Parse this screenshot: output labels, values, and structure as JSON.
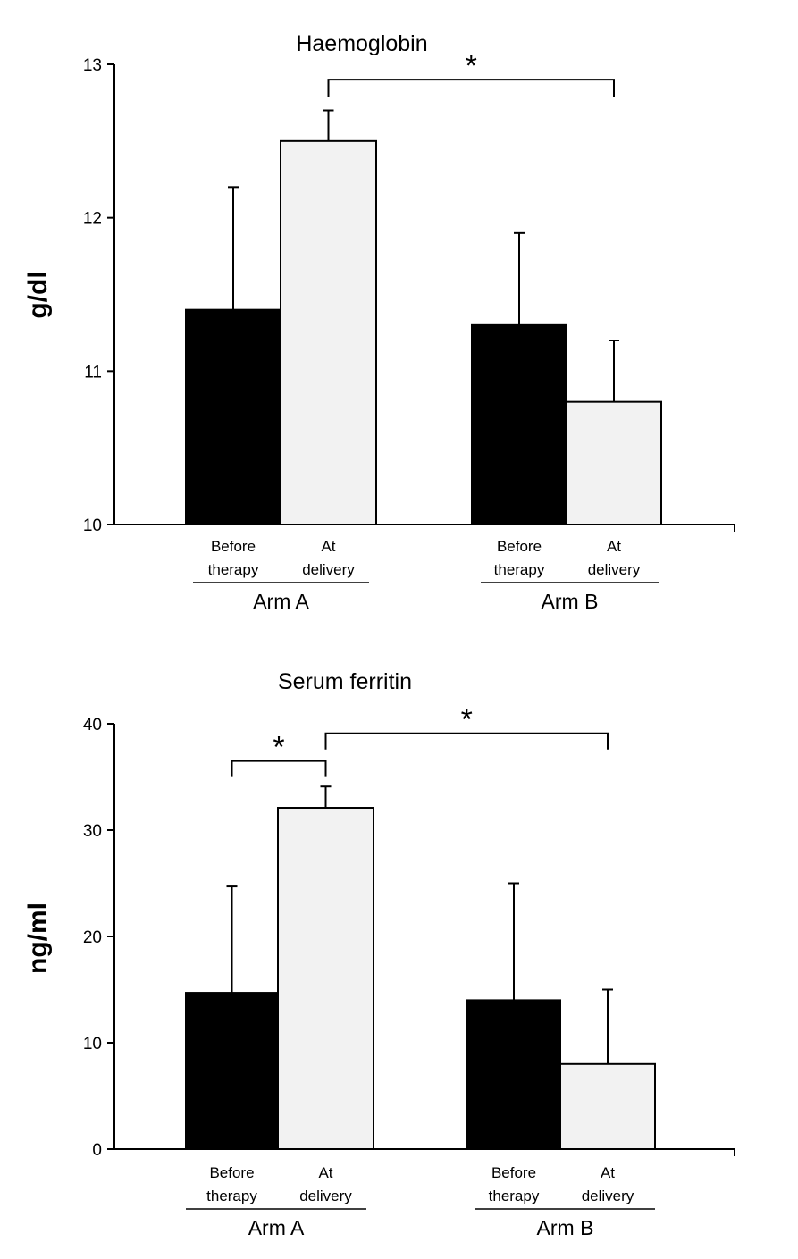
{
  "chart_data": [
    {
      "type": "bar",
      "title": "Haemoglobin",
      "ylabel": "g/dl",
      "xlabel": "",
      "ylim": [
        10,
        13
      ],
      "yticks": [
        "10",
        "11",
        "12",
        "13"
      ],
      "groups": [
        {
          "label": "Arm A",
          "bars": [
            {
              "label_lines": [
                "Before",
                "therapy"
              ],
              "value": 11.4,
              "error": 0.8,
              "color": "#000000"
            },
            {
              "label_lines": [
                "At",
                "delivery"
              ],
              "value": 12.5,
              "error": 0.2,
              "color": "#f2f2f2"
            }
          ]
        },
        {
          "label": "Arm B",
          "bars": [
            {
              "label_lines": [
                "Before",
                "therapy"
              ],
              "value": 11.3,
              "error": 0.6,
              "color": "#000000"
            },
            {
              "label_lines": [
                "At",
                "delivery"
              ],
              "value": 10.8,
              "error": 0.4,
              "color": "#f2f2f2"
            }
          ]
        }
      ],
      "significance": [
        {
          "from": [
            0,
            1
          ],
          "to": [
            1,
            1
          ],
          "label": "*",
          "level": 12.9
        }
      ],
      "grid": false,
      "legend": "none"
    },
    {
      "type": "bar",
      "title": "Serum ferritin",
      "ylabel": "ng/ml",
      "xlabel": "",
      "ylim": [
        0,
        40
      ],
      "yticks": [
        "0",
        "10",
        "20",
        "30",
        "40"
      ],
      "groups": [
        {
          "label": "Arm A",
          "bars": [
            {
              "label_lines": [
                "Before",
                "therapy"
              ],
              "value": 14.7,
              "error": 10.0,
              "color": "#000000"
            },
            {
              "label_lines": [
                "At",
                "delivery"
              ],
              "value": 32.1,
              "error": 2.0,
              "color": "#f2f2f2"
            }
          ]
        },
        {
          "label": "Arm B",
          "bars": [
            {
              "label_lines": [
                "Before",
                "therapy"
              ],
              "value": 14.0,
              "error": 11.0,
              "color": "#000000"
            },
            {
              "label_lines": [
                "At",
                "delivery"
              ],
              "value": 8.0,
              "error": 7.0,
              "color": "#f2f2f2"
            }
          ]
        }
      ],
      "significance": [
        {
          "from": [
            0,
            0
          ],
          "to": [
            0,
            1
          ],
          "label": "*",
          "level": 36.5
        },
        {
          "from": [
            0,
            1
          ],
          "to": [
            1,
            1
          ],
          "label": "*",
          "level": 39.1
        }
      ],
      "grid": false,
      "legend": "none"
    }
  ]
}
